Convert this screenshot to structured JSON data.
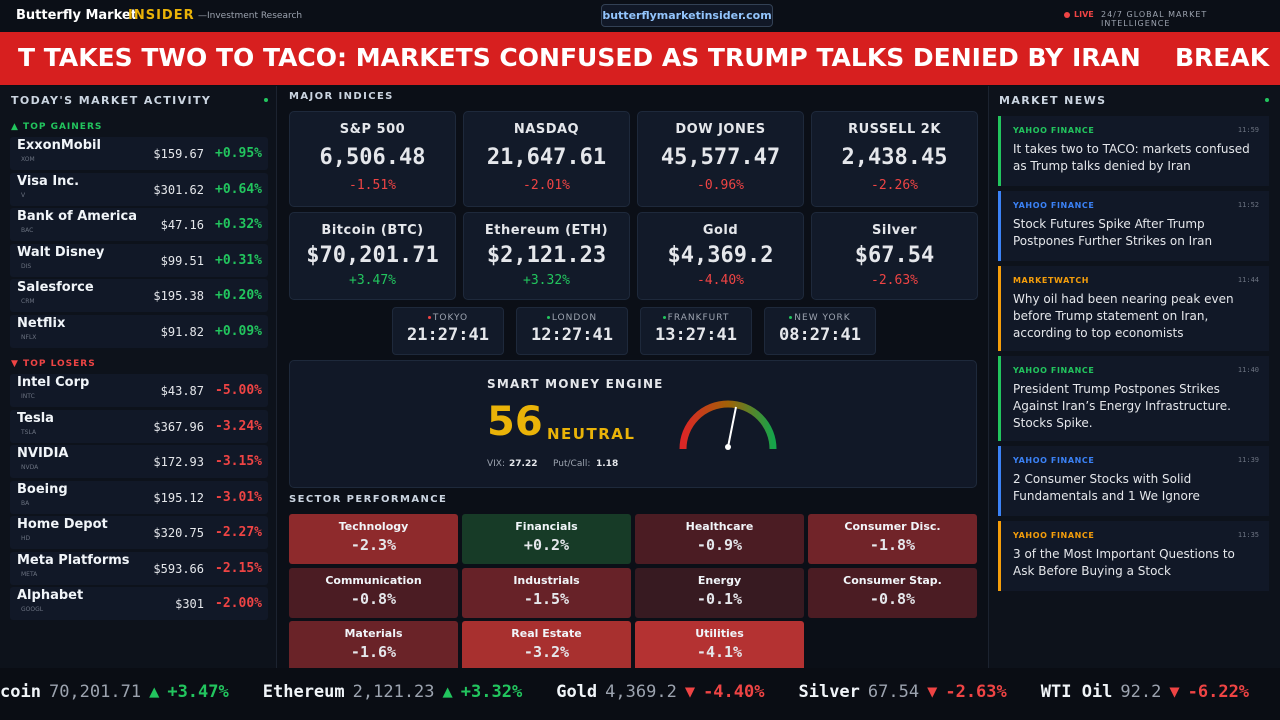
{
  "header": {
    "brand": "Butterfly Market",
    "brand_accent": "INSIDER",
    "tagline": "—Investment Research",
    "url": "butterflymarketinsider.com",
    "live": "LIVE",
    "intel": "24/7 GLOBAL MARKET INTELLIGENCE"
  },
  "banner": {
    "headline": "T TAKES TWO TO TACO: MARKETS CONFUSED AS TRUMP TALKS DENIED BY IRAN",
    "tag": "BREAK"
  },
  "activity": {
    "title": "TODAY'S MARKET ACTIVITY",
    "gainers_title": "▲ TOP GAINERS",
    "losers_title": "▼ TOP LOSERS",
    "gainers": [
      {
        "name": "ExxonMobil",
        "ticker": "XOM",
        "price": "$159.67",
        "change": "+0.95%"
      },
      {
        "name": "Visa Inc.",
        "ticker": "V",
        "price": "$301.62",
        "change": "+0.64%"
      },
      {
        "name": "Bank of America",
        "ticker": "BAC",
        "price": "$47.16",
        "change": "+0.32%"
      },
      {
        "name": "Walt Disney",
        "ticker": "DIS",
        "price": "$99.51",
        "change": "+0.31%"
      },
      {
        "name": "Salesforce",
        "ticker": "CRM",
        "price": "$195.38",
        "change": "+0.20%"
      },
      {
        "name": "Netflix",
        "ticker": "NFLX",
        "price": "$91.82",
        "change": "+0.09%"
      }
    ],
    "losers": [
      {
        "name": "Intel Corp",
        "ticker": "INTC",
        "price": "$43.87",
        "change": "-5.00%"
      },
      {
        "name": "Tesla",
        "ticker": "TSLA",
        "price": "$367.96",
        "change": "-3.24%"
      },
      {
        "name": "NVIDIA",
        "ticker": "NVDA",
        "price": "$172.93",
        "change": "-3.15%"
      },
      {
        "name": "Boeing",
        "ticker": "BA",
        "price": "$195.12",
        "change": "-3.01%"
      },
      {
        "name": "Home Depot",
        "ticker": "HD",
        "price": "$320.75",
        "change": "-2.27%"
      },
      {
        "name": "Meta Platforms",
        "ticker": "META",
        "price": "$593.66",
        "change": "-2.15%"
      },
      {
        "name": "Alphabet",
        "ticker": "GOOGL",
        "price": "$301",
        "change": "-2.00%"
      }
    ]
  },
  "indices": {
    "title": "MAJOR INDICES",
    "cards": [
      {
        "name": "S&P 500",
        "value": "6,506.48",
        "change": "-1.51%"
      },
      {
        "name": "NASDAQ",
        "value": "21,647.61",
        "change": "-2.01%"
      },
      {
        "name": "DOW JONES",
        "value": "45,577.47",
        "change": "-0.96%"
      },
      {
        "name": "RUSSELL 2K",
        "value": "2,438.45",
        "change": "-2.26%"
      },
      {
        "name": "Bitcoin (BTC)",
        "value": "$70,201.71",
        "change": "+3.47%"
      },
      {
        "name": "Ethereum (ETH)",
        "value": "$2,121.23",
        "change": "+3.32%"
      },
      {
        "name": "Gold",
        "value": "$4,369.2",
        "change": "-4.40%"
      },
      {
        "name": "Silver",
        "value": "$67.54",
        "change": "-2.63%"
      }
    ]
  },
  "clocks": [
    {
      "city": "TOKYO",
      "time": "21:27:41"
    },
    {
      "city": "LONDON",
      "time": "12:27:41"
    },
    {
      "city": "FRANKFURT",
      "time": "13:27:41"
    },
    {
      "city": "NEW YORK",
      "time": "08:27:41"
    }
  ],
  "smart_money": {
    "title": "SMART MONEY ENGINE",
    "score": "56",
    "label": "NEUTRAL",
    "vix_label": "VIX:",
    "vix": "27.22",
    "pc_label": "Put/Call:",
    "pc": "1.18"
  },
  "sectors": {
    "title": "SECTOR PERFORMANCE",
    "items": [
      {
        "name": "Technology",
        "change": "-2.3%",
        "color": "#8e2a2c"
      },
      {
        "name": "Financials",
        "change": "+0.2%",
        "color": "#173b27"
      },
      {
        "name": "Healthcare",
        "change": "-0.9%",
        "color": "#4b1c23"
      },
      {
        "name": "Consumer Disc.",
        "change": "-1.8%",
        "color": "#712429"
      },
      {
        "name": "Communication",
        "change": "-0.8%",
        "color": "#4b1c23"
      },
      {
        "name": "Industrials",
        "change": "-1.5%",
        "color": "#672228"
      },
      {
        "name": "Energy",
        "change": "-0.1%",
        "color": "#371a21"
      },
      {
        "name": "Consumer Stap.",
        "change": "-0.8%",
        "color": "#4b1c23"
      },
      {
        "name": "Materials",
        "change": "-1.6%",
        "color": "#6a2328"
      },
      {
        "name": "Real Estate",
        "change": "-3.2%",
        "color": "#a8302f"
      },
      {
        "name": "Utilities",
        "change": "-4.1%",
        "color": "#b43232"
      }
    ]
  },
  "news": {
    "title": "MARKET NEWS",
    "items": [
      {
        "source": "YAHOO FINANCE",
        "time": "11:59",
        "headline": "It takes two to TACO: markets confused as Trump talks denied by Iran",
        "color": "#22c55e"
      },
      {
        "source": "YAHOO FINANCE",
        "time": "11:52",
        "headline": "Stock Futures Spike After Trump Postpones Further Strikes on Iran",
        "color": "#3b82f6"
      },
      {
        "source": "MARKETWATCH",
        "time": "11:44",
        "headline": "Why oil had been nearing peak even before Trump statement on Iran, according to top economists",
        "color": "#f59e0b"
      },
      {
        "source": "YAHOO FINANCE",
        "time": "11:40",
        "headline": "President Trump Postpones Strikes Against Iran’s Energy Infrastructure. Stocks Spike.",
        "color": "#22c55e"
      },
      {
        "source": "YAHOO FINANCE",
        "time": "11:39",
        "headline": "2 Consumer Stocks with Solid Fundamentals and 1 We Ignore",
        "color": "#3b82f6"
      },
      {
        "source": "YAHOO FINANCE",
        "time": "11:35",
        "headline": "3 of the Most Important Questions to Ask Before Buying a Stock",
        "color": "#f59e0b"
      }
    ]
  },
  "ticker": [
    {
      "name": "coin",
      "price": "70,201.71",
      "arrow": "▲",
      "change": "+3.47%"
    },
    {
      "name": "Ethereum",
      "price": "2,121.23",
      "arrow": "▲",
      "change": "+3.32%"
    },
    {
      "name": "Gold",
      "price": "4,369.2",
      "arrow": "▼",
      "change": "-4.40%"
    },
    {
      "name": "Silver",
      "price": "67.54",
      "arrow": "▼",
      "change": "-2.63%"
    },
    {
      "name": "WTI Oil",
      "price": "92.2",
      "arrow": "▼",
      "change": "-6.22%"
    }
  ]
}
